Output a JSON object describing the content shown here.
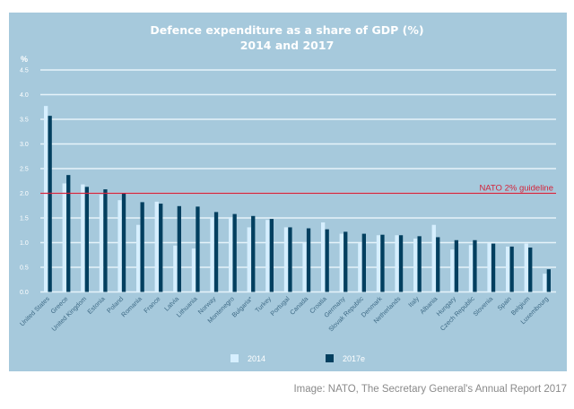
{
  "chart_data": {
    "type": "bar",
    "title": "Defence expenditure as a share of GDP (%)",
    "subtitle": "2014 and 2017",
    "ylabel": "%",
    "xlabel": "",
    "ylim": [
      0,
      4.5
    ],
    "yticks": [
      "0.0",
      "0.5",
      "1.0",
      "1.5",
      "2.0",
      "2.5",
      "3.0",
      "3.5",
      "4.0",
      "4.5"
    ],
    "ytick_values": [
      0,
      0.5,
      1.0,
      1.5,
      2.0,
      2.5,
      3.0,
      3.5,
      4.0,
      4.5
    ],
    "grid": true,
    "legend_position": "bottom-center",
    "categories": [
      "United States",
      "Greece",
      "United Kingdom",
      "Estonia",
      "Poland",
      "Romania",
      "France",
      "Latvia",
      "Lithuania",
      "Norway",
      "Montenegro",
      "Bulgaria*",
      "Turkey",
      "Portugal",
      "Canada",
      "Croatia",
      "Germany",
      "Slovak Republic",
      "Denmark",
      "Netherlands",
      "Italy",
      "Albania",
      "Hungary",
      "Czech Republic",
      "Slovenia",
      "Spain",
      "Belgium",
      "Luxembourg"
    ],
    "series": [
      {
        "name": "2014",
        "color": "#d6efff",
        "values": [
          3.77,
          2.2,
          2.18,
          1.97,
          1.86,
          1.36,
          1.83,
          0.94,
          0.88,
          1.51,
          1.5,
          1.31,
          1.46,
          1.31,
          1.0,
          1.41,
          1.18,
          0.99,
          1.15,
          1.15,
          1.08,
          1.36,
          0.86,
          0.95,
          0.99,
          0.92,
          0.98,
          0.37
        ]
      },
      {
        "name": "2017e",
        "color": "#023f5f",
        "values": [
          3.57,
          2.37,
          2.13,
          2.08,
          2.0,
          1.82,
          1.79,
          1.74,
          1.73,
          1.62,
          1.58,
          1.54,
          1.48,
          1.31,
          1.29,
          1.27,
          1.22,
          1.18,
          1.16,
          1.15,
          1.13,
          1.11,
          1.05,
          1.05,
          0.98,
          0.92,
          0.9,
          0.46
        ]
      }
    ],
    "reference_line": {
      "value": 2.0,
      "label": "NATO 2% guideline",
      "color": "#d4233a"
    },
    "background_color": "#a6c9dc",
    "gridline_color": "#e6f3fa"
  },
  "caption": "Image: NATO, The Secretary General's Annual Report 2017"
}
